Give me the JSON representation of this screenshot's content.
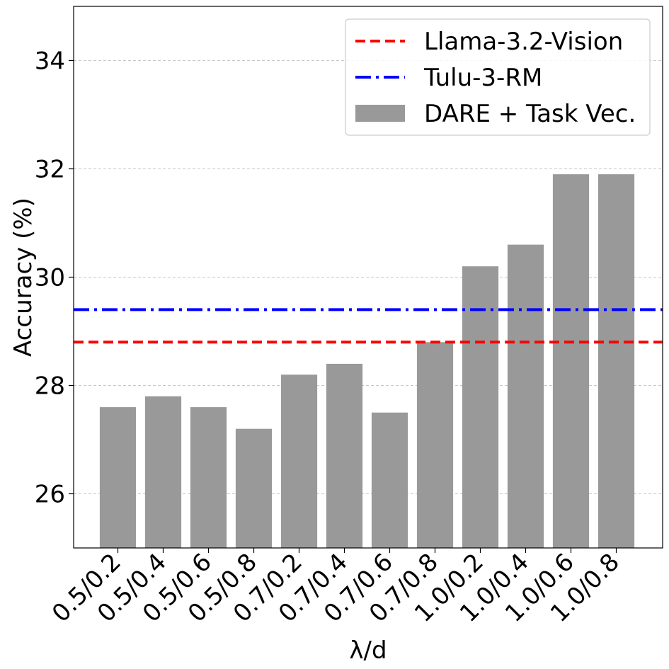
{
  "chart_data": {
    "type": "bar",
    "title": "",
    "xlabel": "λ/d",
    "ylabel": "Accuracy (%)",
    "ylim": [
      25.0,
      35.0
    ],
    "yticks": [
      26,
      28,
      30,
      32,
      34
    ],
    "grid": "y-dashed",
    "legend_position": "top-right",
    "categories": [
      "0.5/0.2",
      "0.5/0.4",
      "0.5/0.6",
      "0.5/0.8",
      "0.7/0.2",
      "0.7/0.4",
      "0.7/0.6",
      "0.7/0.8",
      "1.0/0.2",
      "1.0/0.4",
      "1.0/0.6",
      "1.0/0.8"
    ],
    "series": [
      {
        "name": "DARE + Task Vec.",
        "kind": "bar",
        "color": "#999999",
        "values": [
          27.6,
          27.8,
          27.6,
          27.2,
          28.2,
          28.4,
          27.5,
          28.8,
          30.2,
          30.6,
          31.9,
          31.9
        ]
      }
    ],
    "reference_lines": [
      {
        "name": "Llama-3.2-Vision",
        "value": 28.8,
        "color": "#ff0000",
        "style": "dashed"
      },
      {
        "name": "Tulu-3-RM",
        "value": 29.4,
        "color": "#0000ff",
        "style": "dashdot"
      }
    ],
    "legend": [
      "Llama-3.2-Vision",
      "Tulu-3-RM",
      "DARE + Task Vec."
    ]
  }
}
